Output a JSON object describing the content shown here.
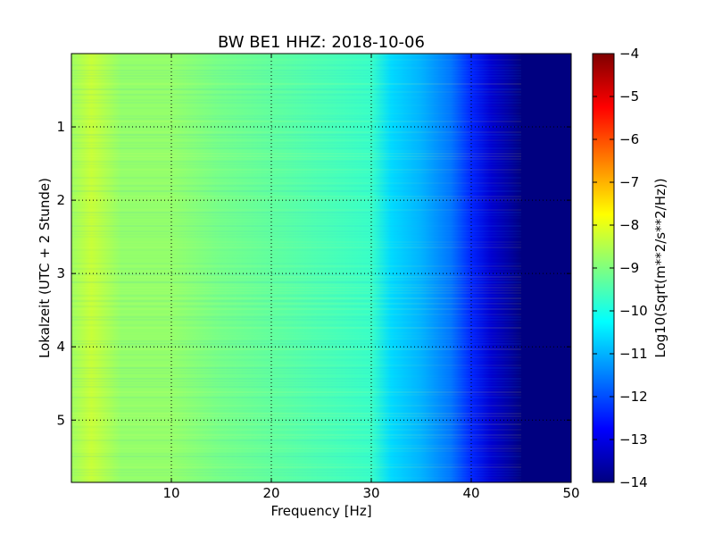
{
  "chart_data": [
    {
      "type": "heatmap",
      "title": "BW BE1 HHZ: 2018-10-06",
      "xlabel": "Frequency [Hz]",
      "ylabel": "Lokalzeit (UTC + 2 Stunde)",
      "xlim": [
        0,
        50
      ],
      "ylim": [
        5.85,
        0
      ],
      "x_ticks": [
        "10",
        "20",
        "30",
        "40",
        "50"
      ],
      "y_ticks": [
        "1",
        "2",
        "3",
        "4",
        "5"
      ],
      "x_tick_values": [
        10,
        20,
        30,
        40,
        50
      ],
      "y_tick_values": [
        1,
        2,
        3,
        4,
        5
      ],
      "grid": true,
      "colormap": "jet",
      "color_range": [
        -14,
        -4
      ],
      "spectrum_profile": {
        "frequency_hz": [
          0,
          2,
          5,
          10,
          15,
          20,
          25,
          30,
          32,
          35,
          38,
          40,
          42,
          44,
          45,
          50
        ],
        "log10_amplitude": [
          -8.7,
          -8.3,
          -8.8,
          -8.8,
          -9.1,
          -9.3,
          -9.5,
          -9.7,
          -10.6,
          -11.0,
          -11.6,
          -12.4,
          -13.2,
          -13.7,
          -14.0,
          -14.0
        ]
      },
      "colorbar": {
        "label": "Log10(Sqrt(m**2/s**2/Hz))",
        "ticks": [
          "−4",
          "−5",
          "−6",
          "−7",
          "−8",
          "−9",
          "−10",
          "−11",
          "−12",
          "−13",
          "−14"
        ],
        "tick_values": [
          -4,
          -5,
          -6,
          -7,
          -8,
          -9,
          -10,
          -11,
          -12,
          -13,
          -14
        ]
      }
    }
  ]
}
